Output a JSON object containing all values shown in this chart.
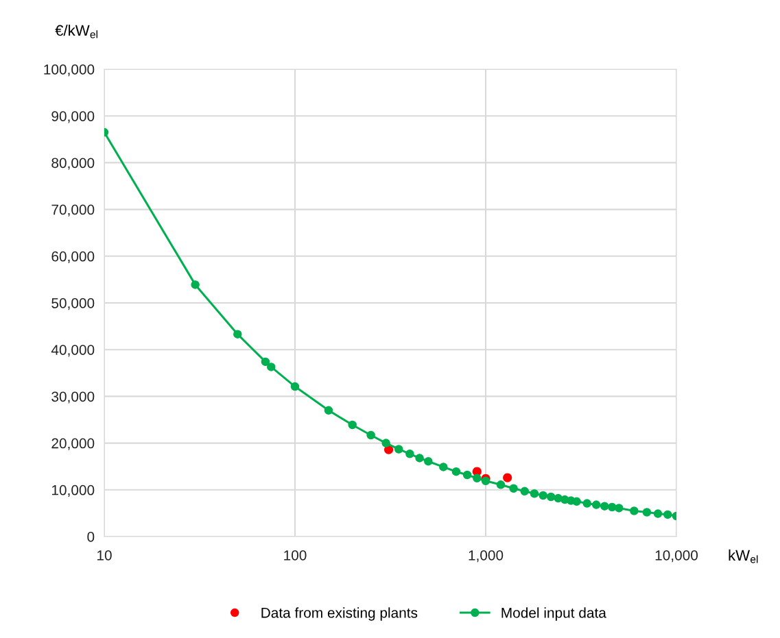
{
  "chart_data": {
    "type": "line",
    "log": "x",
    "ylabel": "€/kW$_{el}$",
    "xlabel": "kW$_{el}$",
    "xlim": [
      10,
      10000
    ],
    "xticks": [
      {
        "value": 10,
        "label": "10"
      },
      {
        "value": 100,
        "label": "100"
      },
      {
        "value": 1000,
        "label": "1,000"
      },
      {
        "value": 10000,
        "label": "10,000"
      }
    ],
    "ylim": [
      0,
      100000
    ],
    "yticks": [
      {
        "value": 0,
        "label": "0"
      },
      {
        "value": 10000,
        "label": "10,000"
      },
      {
        "value": 20000,
        "label": "20,000"
      },
      {
        "value": 30000,
        "label": "30,000"
      },
      {
        "value": 40000,
        "label": "40,000"
      },
      {
        "value": 50000,
        "label": "50,000"
      },
      {
        "value": 60000,
        "label": "60,000"
      },
      {
        "value": 70000,
        "label": "70,000"
      },
      {
        "value": 80000,
        "label": "80,000"
      },
      {
        "value": 90000,
        "label": "90,000"
      },
      {
        "value": 100000,
        "label": "100,000"
      }
    ],
    "grid": true,
    "legend": "bottom",
    "marker": "circle",
    "line_style": "solid",
    "series": [
      {
        "name": "Data from existing plants",
        "type": "scatter",
        "color": "#ff0000",
        "x": [
          310,
          900,
          1000,
          1300
        ],
        "values": [
          18600,
          13900,
          12400,
          12600
        ]
      },
      {
        "name": "Model input data",
        "color": "#00b050",
        "x": [
          10,
          30,
          50,
          70,
          75,
          100,
          150,
          200,
          250,
          300,
          350,
          400,
          450,
          500,
          600,
          700,
          800,
          900,
          1000,
          1200,
          1400,
          1600,
          1800,
          2000,
          2200,
          2400,
          2600,
          2800,
          3000,
          3400,
          3800,
          4200,
          4600,
          5000,
          6000,
          7000,
          8000,
          9000,
          10000
        ],
        "values": [
          86500,
          53900,
          43300,
          37400,
          36300,
          32100,
          27000,
          23900,
          21700,
          20000,
          18700,
          17700,
          16800,
          16100,
          14900,
          13900,
          13200,
          12500,
          11900,
          11100,
          10300,
          9700,
          9200,
          8800,
          8500,
          8200,
          7900,
          7700,
          7500,
          7100,
          6800,
          6500,
          6300,
          6100,
          5500,
          5200,
          4900,
          4700,
          4400
        ]
      }
    ]
  }
}
